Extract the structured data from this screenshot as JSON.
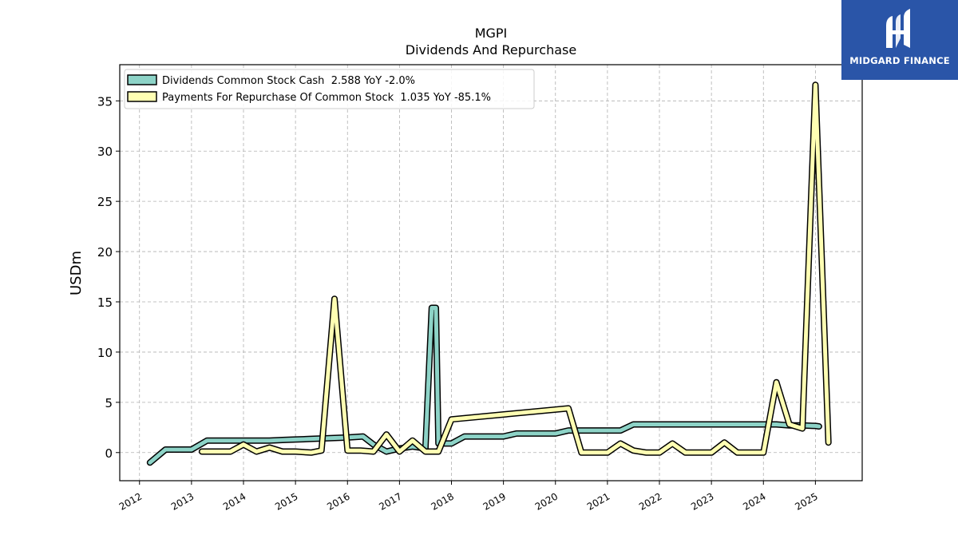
{
  "chart_data": {
    "type": "line",
    "title": "MGPI",
    "subtitle": "Dividends And Repurchase",
    "ylabel": "USDm",
    "xlabel": "",
    "xlim": [
      2011.62,
      2025.9
    ],
    "ylim": [
      -2.8,
      38.6
    ],
    "x_ticks": [
      2012,
      2013,
      2014,
      2015,
      2016,
      2017,
      2018,
      2019,
      2020,
      2021,
      2022,
      2023,
      2024,
      2025
    ],
    "x_tick_labels": [
      "2012",
      "2013",
      "2014",
      "2015",
      "2016",
      "2017",
      "2018",
      "2019",
      "2020",
      "2021",
      "2022",
      "2023",
      "2024",
      "2025"
    ],
    "y_ticks": [
      0,
      5,
      10,
      15,
      20,
      25,
      30,
      35
    ],
    "y_tick_labels": [
      "0",
      "5",
      "10",
      "15",
      "20",
      "25",
      "30",
      "35"
    ],
    "grid": true,
    "legend_position": "top-left",
    "series": [
      {
        "name": "Dividends Common Stock Cash  2.588 YoY -2.0%",
        "color": "#8dd3c7",
        "x": [
          2012.2,
          2012.5,
          2013.0,
          2013.3,
          2013.75,
          2014.0,
          2014.25,
          2014.5,
          2014.75,
          2015.0,
          2015.25,
          2015.5,
          2015.75,
          2016.0,
          2016.3,
          2016.5,
          2016.75,
          2017.0,
          2017.25,
          2017.5,
          2017.62,
          2017.7,
          2017.75,
          2018.0,
          2018.25,
          2018.5,
          2018.75,
          2019.0,
          2019.25,
          2019.5,
          2019.75,
          2020.0,
          2020.25,
          2020.5,
          2020.75,
          2021.0,
          2021.25,
          2021.5,
          2021.75,
          2022.0,
          2022.25,
          2022.5,
          2022.75,
          2023.0,
          2023.25,
          2023.5,
          2023.75,
          2024.0,
          2024.25,
          2024.5,
          2024.75,
          2025.0,
          2025.07
        ],
        "values": [
          -1.0,
          0.3,
          0.3,
          1.2,
          1.2,
          1.2,
          1.2,
          1.2,
          1.25,
          1.3,
          1.35,
          1.4,
          1.45,
          1.5,
          1.6,
          0.8,
          0.1,
          0.4,
          0.6,
          0.4,
          14.4,
          14.4,
          0.9,
          0.9,
          1.6,
          1.6,
          1.6,
          1.6,
          1.9,
          1.9,
          1.9,
          1.9,
          2.2,
          2.2,
          2.2,
          2.2,
          2.2,
          2.8,
          2.8,
          2.8,
          2.8,
          2.8,
          2.8,
          2.8,
          2.8,
          2.8,
          2.8,
          2.8,
          2.8,
          2.7,
          2.7,
          2.65,
          2.6
        ]
      },
      {
        "name": "Payments For Repurchase Of Common Stock  1.035 YoY -85.1%",
        "color": "#ffffb3",
        "x": [
          2013.2,
          2013.5,
          2013.75,
          2014.0,
          2014.25,
          2014.5,
          2014.75,
          2015.0,
          2015.3,
          2015.5,
          2015.75,
          2016.0,
          2016.25,
          2016.5,
          2016.75,
          2017.0,
          2017.25,
          2017.5,
          2017.75,
          2018.0,
          2020.25,
          2020.5,
          2020.75,
          2021.0,
          2021.25,
          2021.5,
          2021.75,
          2022.0,
          2022.25,
          2022.5,
          2022.75,
          2023.0,
          2023.25,
          2023.5,
          2023.75,
          2024.0,
          2024.25,
          2024.5,
          2024.75,
          2025.0,
          2025.25
        ],
        "values": [
          0.1,
          0.1,
          0.1,
          0.8,
          0.1,
          0.5,
          0.1,
          0.1,
          0.0,
          0.2,
          15.3,
          0.2,
          0.2,
          0.1,
          1.8,
          0.1,
          1.2,
          0.1,
          0.1,
          3.3,
          4.4,
          0.0,
          0.0,
          0.0,
          0.9,
          0.2,
          0.0,
          0.0,
          0.9,
          0.0,
          0.0,
          0.0,
          1.0,
          0.0,
          0.0,
          0.0,
          7.0,
          2.8,
          2.4,
          36.6,
          1.0
        ]
      }
    ]
  },
  "logo": {
    "text": "MIDGARD FINANCE"
  }
}
